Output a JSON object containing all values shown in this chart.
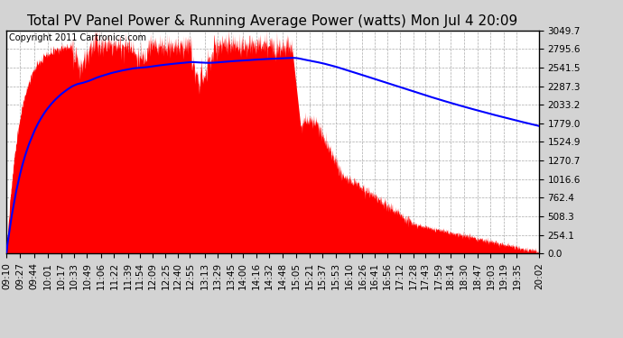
{
  "title": "Total PV Panel Power & Running Average Power (watts) Mon Jul 4 20:09",
  "copyright": "Copyright 2011 Cartronics.com",
  "yticks": [
    0.0,
    254.1,
    508.3,
    762.4,
    1016.6,
    1270.7,
    1524.9,
    1779.0,
    2033.2,
    2287.3,
    2541.5,
    2795.6,
    3049.7
  ],
  "ymin": 0.0,
  "ymax": 3049.7,
  "xtick_labels": [
    "09:10",
    "09:27",
    "09:44",
    "10:01",
    "10:17",
    "10:33",
    "10:49",
    "11:06",
    "11:22",
    "11:39",
    "11:54",
    "12:09",
    "12:25",
    "12:40",
    "12:55",
    "13:13",
    "13:29",
    "13:45",
    "14:00",
    "14:16",
    "14:32",
    "14:48",
    "15:05",
    "15:21",
    "15:37",
    "15:53",
    "16:10",
    "16:26",
    "16:41",
    "16:56",
    "17:12",
    "17:28",
    "17:43",
    "17:59",
    "18:14",
    "18:30",
    "18:47",
    "19:03",
    "19:19",
    "19:35",
    "20:02"
  ],
  "fill_color": "#FF0000",
  "line_color": "#0000FF",
  "background_color": "#D3D3D3",
  "plot_bg_color": "#FFFFFF",
  "grid_color": "#C8C8C8",
  "border_color": "#000000",
  "title_fontsize": 11,
  "copyright_fontsize": 7,
  "tick_fontsize": 7.5
}
